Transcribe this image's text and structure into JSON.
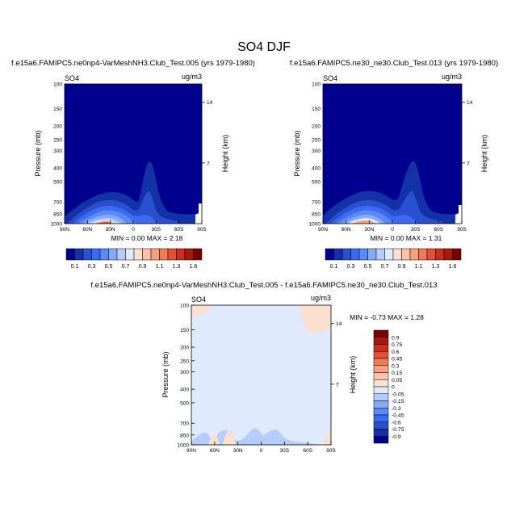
{
  "figure_title": "SO4 DJF",
  "chart_data": [
    {
      "type": "contour",
      "id": "panel-left",
      "title": "f.e15a6.FAMIPC5.ne0np4-VarMeshNH3.Club_Test.005 (yrs 1979-1980)",
      "left_label": "SO4",
      "right_label": "ug/m3",
      "ylabel": "Pressure (mb)",
      "y2label": "Height (km)",
      "yticks": [
        "100",
        "150",
        "200",
        "250",
        "300",
        "400",
        "500",
        "700",
        "850",
        "1000"
      ],
      "y2ticks": [
        "14",
        "7"
      ],
      "xticks": [
        "90N",
        "60N",
        "30N",
        "0",
        "30S",
        "60S",
        "90S"
      ],
      "minmax_text": "MIN =   0.00  MAX =   2.18",
      "min": 0.0,
      "max": 2.18
    },
    {
      "type": "contour",
      "id": "panel-right",
      "title": "f.e15a6.FAMIPC5.ne30_ne30.Club_Test.013 (yrs 1979-1980)",
      "left_label": "SO4",
      "right_label": "ug/m3",
      "ylabel": "Pressure (mb)",
      "y2label": "Height (km)",
      "yticks": [
        "100",
        "150",
        "200",
        "250",
        "300",
        "400",
        "500",
        "700",
        "850",
        "1000"
      ],
      "y2ticks": [
        "14",
        "7"
      ],
      "xticks": [
        "90N",
        "60N",
        "30N",
        "0",
        "30S",
        "60S",
        "90S"
      ],
      "minmax_text": "MIN =   0.00  MAX =   1.31",
      "min": 0.0,
      "max": 1.31
    },
    {
      "type": "contour",
      "id": "panel-diff",
      "title": "f.e15a6.FAMIPC5.ne0np4-VarMeshNH3.Club_Test.005 - f.e15a6.FAMIPC5.ne30_ne30.Club_Test.013",
      "left_label": "SO4",
      "right_label": "ug/m3",
      "ylabel": "Pressure (mb)",
      "y2label": "Height (km)",
      "yticks": [
        "100",
        "150",
        "200",
        "250",
        "300",
        "400",
        "500",
        "700",
        "850",
        "1000"
      ],
      "y2ticks": [
        "14",
        "7"
      ],
      "xticks": [
        "90N",
        "60N",
        "30N",
        "0",
        "30S",
        "60S",
        "90S"
      ],
      "minmax_text": "MIN =  -0.73  MAX =   1.28",
      "min": -0.73,
      "max": 1.28
    }
  ],
  "colorbar_shared": {
    "labels": [
      "0.1",
      "0.3",
      "0.5",
      "0.7",
      "0.9",
      "1.1",
      "1.3",
      "1.6"
    ],
    "colors": [
      "#00008f",
      "#1432a8",
      "#2a4fd1",
      "#3b6bf0",
      "#5a8af5",
      "#85aaf9",
      "#b4cdfc",
      "#dfeafe",
      "#fbe0cf",
      "#fbc3a8",
      "#f5a080",
      "#ee7a5a",
      "#e25035",
      "#cc2e1e",
      "#a8180e",
      "#7a0000"
    ]
  },
  "colorbar_diff": {
    "labels": [
      "0.9",
      "0.75",
      "0.6",
      "0.45",
      "0.3",
      "0.15",
      "0.05",
      "0",
      "-0.05",
      "-0.15",
      "-0.3",
      "-0.45",
      "-0.6",
      "-0.75",
      "-0.9"
    ],
    "colors": [
      "#7a0000",
      "#a8180e",
      "#cc2e1e",
      "#e25035",
      "#ee7a5a",
      "#f5a080",
      "#fbc3a8",
      "#fbe0cf",
      "#dfeafe",
      "#b4cdfc",
      "#85aaf9",
      "#5a8af5",
      "#3b6bf0",
      "#2a4fd1",
      "#1432a8",
      "#00008f"
    ]
  }
}
